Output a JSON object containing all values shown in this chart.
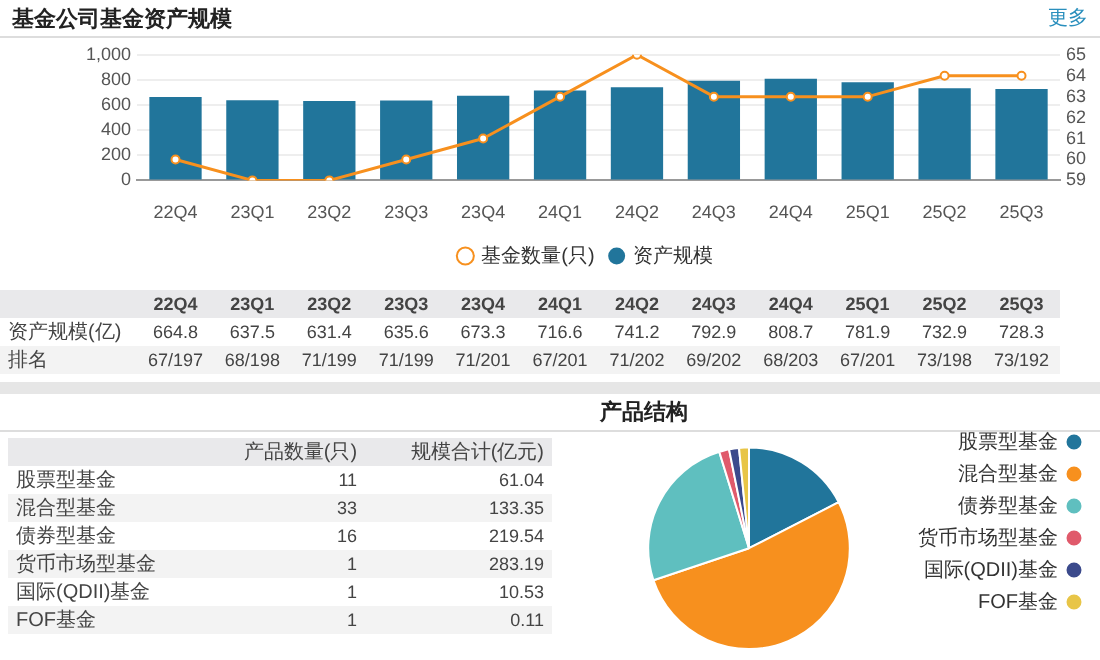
{
  "chart_data": [
    {
      "type": "bar",
      "title": "基金公司基金资产规模",
      "categories": [
        "22Q4",
        "23Q1",
        "23Q2",
        "23Q3",
        "23Q4",
        "24Q1",
        "24Q2",
        "24Q3",
        "24Q4",
        "25Q1",
        "25Q2",
        "25Q3"
      ],
      "series": [
        {
          "name": "资产规模",
          "color": "#21759b",
          "values": [
            664.8,
            637.5,
            631.4,
            635.6,
            673.3,
            716.6,
            741.2,
            792.9,
            808.7,
            781.9,
            732.9,
            728.3
          ],
          "value_labels": [
            "664.8",
            "637.5",
            "631.4",
            "635.6",
            "673.3",
            "716.6",
            "741.2",
            "792.9",
            "808.7",
            "781.9",
            "732.9",
            "728.3"
          ]
        },
        {
          "name": "基金数量(只)",
          "type": "line",
          "axis": "y2",
          "color": "#f7901e",
          "values": [
            60,
            59,
            59,
            60,
            61,
            63,
            65,
            63,
            63,
            63,
            64,
            64
          ]
        }
      ],
      "ylim": [
        0,
        1000
      ],
      "yticks": [
        0,
        200,
        400,
        600,
        800,
        {
          "value": 1000,
          "label": "1,000"
        }
      ],
      "y2lim": [
        59,
        65
      ],
      "y2ticks": [
        59,
        60,
        61,
        62,
        63,
        64,
        65
      ],
      "grid": "y",
      "legend": "bottom",
      "marker": "circle",
      "line_style": "solid",
      "annotations": [
        "更多",
        "资产规模(亿)",
        "排名",
        "67/197",
        "68/198",
        "71/199",
        "71/199",
        "71/201",
        "67/201",
        "71/202",
        "69/202",
        "68/203",
        "67/201",
        "73/198",
        "73/192"
      ]
    },
    {
      "type": "pie",
      "title": "产品结构",
      "categories": [
        "股票型基金",
        "混合型基金",
        "债券型基金",
        "货币市场型基金",
        "国际(QDII)基金",
        "FOF基金"
      ],
      "values": [
        17.46,
        52.38,
        25.4,
        1.59,
        1.59,
        1.58
      ],
      "colors": [
        "#21759b",
        "#f7901e",
        "#5fbfbf",
        "#e05a6b",
        "#3b4a8c",
        "#e8c547"
      ],
      "legend": "right",
      "annotations": [
        "产品数量(只)",
        "规模合计(亿元)",
        "11",
        "61.04",
        "33",
        "133.35",
        "16",
        "219.54",
        "1",
        "283.19",
        "1",
        "10.53",
        "1",
        "0.11"
      ]
    }
  ]
}
